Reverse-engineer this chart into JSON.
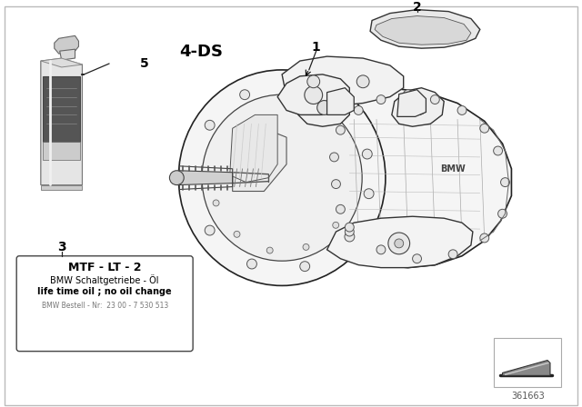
{
  "bg_color": "#ffffff",
  "border_color": "#cccccc",
  "label_4ds": "4-DS",
  "label_num1": "1",
  "label_num2": "2",
  "label_num3": "3",
  "label_num5": "5",
  "box3_lines": [
    "MTF - LT - 2",
    "BMW Schaltgetriebe - Öl",
    "life time oil ; no oil change",
    "BMW Bestell - Nr:  23 00 - 7 530 513"
  ],
  "diagram_id": "361663",
  "lc": "#222222",
  "tc": "#000000",
  "gc": "#999999",
  "bottle_body_color": "#e8e8e8",
  "bottle_label_color": "#555555",
  "bottle_cap_color": "#d0d0d0"
}
